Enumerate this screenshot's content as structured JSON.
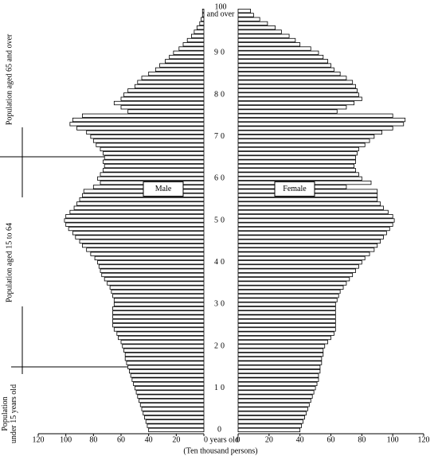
{
  "chart_data": {
    "type": "population-pyramid",
    "y_label": "years old",
    "x_label": "(Ten thousand persons)",
    "y": [
      0,
      1,
      2,
      3,
      4,
      5,
      6,
      7,
      8,
      9,
      10,
      11,
      12,
      13,
      14,
      15,
      16,
      17,
      18,
      19,
      20,
      21,
      22,
      23,
      24,
      25,
      26,
      27,
      28,
      29,
      30,
      31,
      32,
      33,
      34,
      35,
      36,
      37,
      38,
      39,
      40,
      41,
      42,
      43,
      44,
      45,
      46,
      47,
      48,
      49,
      50,
      51,
      52,
      53,
      54,
      55,
      56,
      57,
      58,
      59,
      60,
      61,
      62,
      63,
      64,
      65,
      66,
      67,
      68,
      69,
      70,
      71,
      72,
      73,
      74,
      75,
      76,
      77,
      78,
      79,
      80,
      81,
      82,
      83,
      84,
      85,
      86,
      87,
      88,
      89,
      90,
      91,
      92,
      93,
      94,
      95,
      96,
      97,
      98,
      99,
      100
    ],
    "ylim": [
      -0.5,
      100.5
    ],
    "yticks": [
      0,
      10,
      20,
      30,
      40,
      50,
      60,
      70,
      80,
      90,
      {
        "value": 100,
        "label": "100 and over"
      }
    ],
    "series": [
      {
        "name": "Male",
        "color": "#ffffff",
        "xlim": [
          120,
          0
        ],
        "xticks": [
          120,
          100,
          80,
          60,
          40,
          20,
          {
            "value": 0,
            "label": "0 years old"
          }
        ],
        "values": [
          40,
          41,
          42,
          43,
          44,
          45,
          46,
          47,
          48,
          49,
          50,
          51,
          52,
          53,
          54,
          55,
          56,
          57,
          57,
          58,
          59,
          60,
          62,
          63,
          65,
          66,
          66,
          66,
          66,
          66,
          65,
          65,
          66,
          67,
          68,
          70,
          72,
          74,
          75,
          76,
          77,
          79,
          82,
          85,
          88,
          90,
          93,
          95,
          98,
          100,
          101,
          100,
          97,
          94,
          92,
          90,
          88,
          87,
          80,
          75,
          77,
          75,
          73,
          72,
          73,
          72,
          73,
          75,
          78,
          80,
          82,
          85,
          92,
          97,
          95,
          88,
          55,
          60,
          65,
          60,
          58,
          55,
          50,
          48,
          45,
          40,
          35,
          32,
          28,
          25,
          22,
          18,
          15,
          12,
          9,
          7,
          5,
          3,
          2,
          1,
          1
        ]
      },
      {
        "name": "Female",
        "color": "#ffffff",
        "xlim": [
          0,
          120
        ],
        "xticks": [
          0,
          20,
          40,
          60,
          80,
          100,
          120
        ],
        "values": [
          40,
          41,
          42,
          43,
          44,
          45,
          46,
          47,
          48,
          49,
          50,
          51,
          52,
          52,
          53,
          53,
          54,
          54,
          55,
          55,
          56,
          58,
          60,
          62,
          63,
          63,
          63,
          63,
          63,
          63,
          63,
          64,
          65,
          66,
          68,
          70,
          72,
          74,
          76,
          78,
          80,
          82,
          85,
          88,
          90,
          92,
          94,
          96,
          98,
          100,
          101,
          100,
          97,
          94,
          92,
          90,
          90,
          90,
          70,
          86,
          80,
          78,
          76,
          75,
          76,
          76,
          77,
          78,
          82,
          85,
          88,
          93,
          100,
          107,
          108,
          100,
          64,
          70,
          75,
          80,
          78,
          77,
          76,
          74,
          70,
          66,
          62,
          60,
          58,
          55,
          52,
          47,
          40,
          37,
          33,
          28,
          24,
          19,
          14,
          10,
          8
        ]
      }
    ],
    "annotations": [
      [
        "Population aged 65 and over"
      ],
      [
        "Population aged 15 to 64"
      ],
      [
        "Population",
        "under 15 years old"
      ]
    ]
  }
}
